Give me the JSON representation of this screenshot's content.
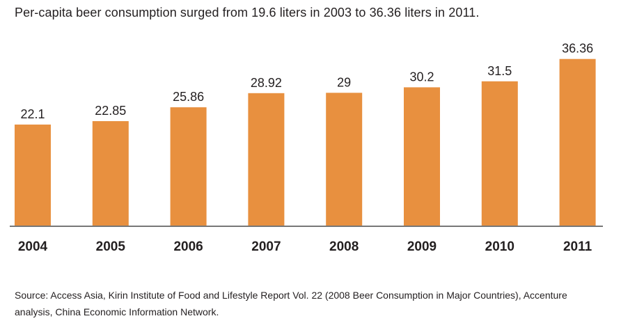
{
  "chart_data": {
    "type": "bar",
    "title": "Per-capita beer consumption surged from 19.6 liters in 2003 to 36.36 liters in 2011.",
    "categories": [
      "2004",
      "2005",
      "2006",
      "2007",
      "2008",
      "2009",
      "2010",
      "2011"
    ],
    "values": [
      22.1,
      22.85,
      25.86,
      28.92,
      29,
      30.2,
      31.5,
      36.36
    ],
    "value_labels": [
      "22.1",
      "22.85",
      "25.86",
      "28.92",
      "29",
      "30.2",
      "31.5",
      "36.36"
    ],
    "xlabel": "",
    "ylabel": "",
    "ylim": [
      0,
      38
    ],
    "grid": false,
    "bar_color": "#e8903f",
    "baseline_color": "#777777"
  },
  "source_text": "Source: Access Asia, Kirin Institute of Food and Lifestyle Report Vol. 22 (2008 Beer Consumption in Major Countries), Accenture analysis, China Economic Information Network."
}
